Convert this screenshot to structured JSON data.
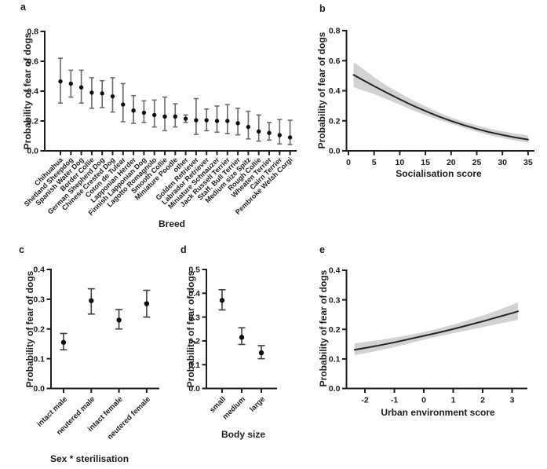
{
  "colors": {
    "ink": "#1d1d1d",
    "dot": "#0d0d0d",
    "error_bar_light": "#6a6a6a",
    "error_bar_dark": "#3f3f3f",
    "trend_line": "#242424",
    "confidence_band": "#d2d2d2",
    "background": "#ffffff"
  },
  "chart_data": [
    {
      "id": "a",
      "type": "scatter",
      "panel_label": "a",
      "ylabel": "Probability of fear of dogs",
      "xlabel": "Breed",
      "ylim": [
        0,
        0.8
      ],
      "yticks": [
        "0.0",
        "0.2",
        "0.4",
        "0.6",
        "0.8"
      ],
      "grid": false,
      "categories": [
        "Chihuahua",
        "Shetland Sheepdog",
        "Spanish Water Dog",
        "Border Collie",
        "German Shepherd Dog",
        "Chinese Crested Dog",
        "Coton de Tulear",
        "Lapponian Herder",
        "Finnish Lapponian Dog",
        "Lagotto Romagnolo",
        "Smooth Collie",
        "Miniature Poodle",
        "other",
        "Golden Retriever",
        "Labrador Retriever",
        "Miniature Schnauzer",
        "Jack Russell Terrier",
        "Staff. Bull Terrier",
        "Medium size Spitz",
        "Rough Collie",
        "Wheaten Terrier",
        "Cairn Terrier",
        "Pembroke Welsh Corgi"
      ],
      "values": [
        0.465,
        0.45,
        0.425,
        0.39,
        0.385,
        0.365,
        0.31,
        0.27,
        0.255,
        0.24,
        0.23,
        0.23,
        0.215,
        0.205,
        0.205,
        0.2,
        0.2,
        0.185,
        0.16,
        0.13,
        0.12,
        0.105,
        0.09
      ],
      "ci_low": [
        0.32,
        0.36,
        0.32,
        0.285,
        0.29,
        0.26,
        0.195,
        0.185,
        0.19,
        0.16,
        0.135,
        0.16,
        0.19,
        0.11,
        0.135,
        0.125,
        0.115,
        0.107,
        0.08,
        0.065,
        0.072,
        0.046,
        0.042
      ],
      "ci_high": [
        0.62,
        0.54,
        0.54,
        0.49,
        0.47,
        0.49,
        0.45,
        0.37,
        0.335,
        0.34,
        0.36,
        0.315,
        0.24,
        0.35,
        0.28,
        0.3,
        0.31,
        0.285,
        0.265,
        0.24,
        0.19,
        0.21,
        0.205
      ]
    },
    {
      "id": "b",
      "type": "line",
      "panel_label": "b",
      "ylabel": "Probability of fear of dogs",
      "xlabel": "Socialisation score",
      "ylim": [
        0,
        0.8
      ],
      "yticks": [
        "0.0",
        "0.2",
        "0.4",
        "0.6",
        "0.8"
      ],
      "xlim": [
        0,
        35
      ],
      "xticks": [
        "0",
        "5",
        "10",
        "15",
        "20",
        "25",
        "30",
        "35"
      ],
      "grid": false,
      "legend": "none",
      "x": [
        1,
        2.5,
        5,
        7.5,
        10,
        12.5,
        15,
        17.5,
        20,
        22.5,
        25,
        27.5,
        30,
        32.5,
        35
      ],
      "y": [
        0.505,
        0.477,
        0.431,
        0.386,
        0.343,
        0.302,
        0.265,
        0.23,
        0.199,
        0.171,
        0.146,
        0.124,
        0.106,
        0.089,
        0.075
      ],
      "band_upper": [
        0.59,
        0.555,
        0.49,
        0.432,
        0.385,
        0.337,
        0.296,
        0.257,
        0.222,
        0.193,
        0.17,
        0.148,
        0.13,
        0.115,
        0.103
      ],
      "band_lower": [
        0.425,
        0.405,
        0.378,
        0.343,
        0.307,
        0.27,
        0.238,
        0.207,
        0.18,
        0.152,
        0.126,
        0.103,
        0.085,
        0.068,
        0.054
      ]
    },
    {
      "id": "c",
      "type": "scatter",
      "panel_label": "c",
      "ylabel": "Probability of fear of dogs",
      "xlabel": "Sex * sterilisation",
      "ylim": [
        0,
        0.4
      ],
      "yticks": [
        "0.0",
        "0.1",
        "0.2",
        "0.3",
        "0.4"
      ],
      "grid": false,
      "categories": [
        "intact male",
        "neutered male",
        "intact female",
        "neutered female"
      ],
      "values": [
        0.155,
        0.295,
        0.23,
        0.285
      ],
      "ci_low": [
        0.13,
        0.25,
        0.2,
        0.24
      ],
      "ci_high": [
        0.185,
        0.335,
        0.265,
        0.33
      ]
    },
    {
      "id": "d",
      "type": "scatter",
      "panel_label": "d",
      "ylabel": "Probability of fear of dogs",
      "xlabel": "Body size",
      "ylim": [
        0,
        0.5
      ],
      "yticks": [
        "0.0",
        "0.1",
        "0.2",
        "0.3",
        "0.4",
        "0.5"
      ],
      "grid": false,
      "categories": [
        "small",
        "medium",
        "large"
      ],
      "values": [
        0.37,
        0.215,
        0.15
      ],
      "ci_low": [
        0.33,
        0.185,
        0.125
      ],
      "ci_high": [
        0.415,
        0.255,
        0.18
      ]
    },
    {
      "id": "e",
      "type": "line",
      "panel_label": "e",
      "ylabel": "Probability of fear of dogs",
      "xlabel": "Urban environment score",
      "ylim": [
        0,
        0.4
      ],
      "yticks": [
        "0.0",
        "0.1",
        "0.2",
        "0.3",
        "0.4"
      ],
      "xlim": [
        -2.6,
        3.5
      ],
      "xticks": [
        "-2",
        "-1",
        "0",
        "1",
        "2",
        "3"
      ],
      "grid": false,
      "legend": "none",
      "x": [
        -2.35,
        -2,
        -1.5,
        -1,
        -0.5,
        0,
        0.5,
        1,
        1.5,
        2,
        2.5,
        3,
        3.2
      ],
      "y": [
        0.131,
        0.137,
        0.146,
        0.156,
        0.167,
        0.178,
        0.189,
        0.201,
        0.214,
        0.227,
        0.241,
        0.255,
        0.261
      ],
      "band_upper": [
        0.152,
        0.157,
        0.164,
        0.172,
        0.181,
        0.191,
        0.203,
        0.216,
        0.231,
        0.247,
        0.264,
        0.283,
        0.291
      ],
      "band_lower": [
        0.113,
        0.119,
        0.129,
        0.14,
        0.152,
        0.165,
        0.176,
        0.187,
        0.197,
        0.207,
        0.218,
        0.228,
        0.232
      ]
    }
  ]
}
